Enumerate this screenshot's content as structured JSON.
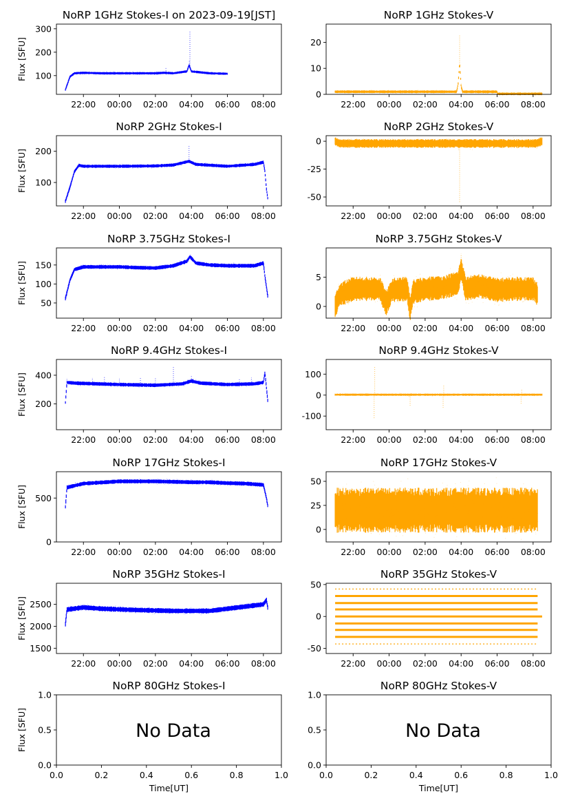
{
  "figure": {
    "xlabel": "Time[UT]"
  },
  "chart_data": [
    {
      "id": "p1i",
      "type": "scatter",
      "title": "NoRP 1GHz Stokes-I on 2023-09-19[JST]",
      "ylabel": "Flux [SFU]",
      "ylim": [
        20,
        320
      ],
      "yticks": [
        100,
        200,
        300
      ],
      "xlim": [
        "20:30",
        "09:00"
      ],
      "xticks": [
        "22:00",
        "00:00",
        "02:00",
        "04:00",
        "06:00",
        "08:00"
      ],
      "color": "#0000ff",
      "start": "21:00",
      "end": "06:00",
      "profile": [
        [
          "21:00",
          40
        ],
        [
          "21:15",
          95
        ],
        [
          "21:30",
          110
        ],
        [
          "22:00",
          112
        ],
        [
          "23:00",
          110
        ],
        [
          "00:00",
          110
        ],
        [
          "01:00",
          110
        ],
        [
          "02:00",
          110
        ],
        [
          "02:30",
          112
        ],
        [
          "03:00",
          110
        ],
        [
          "03:45",
          118
        ],
        [
          "03:52",
          145
        ],
        [
          "04:00",
          118
        ],
        [
          "05:00",
          110
        ],
        [
          "06:00",
          108
        ]
      ],
      "spread": 4,
      "spikes": [
        [
          "02:35",
          135
        ],
        [
          "03:53",
          165
        ],
        [
          "03:55",
          290
        ]
      ]
    },
    {
      "id": "p1v",
      "type": "scatter",
      "title": "NoRP 1GHz Stokes-V",
      "ylabel": "",
      "ylim": [
        0,
        27
      ],
      "yticks": [
        0,
        10,
        20
      ],
      "xlim": [
        "20:30",
        "09:00"
      ],
      "xticks": [
        "22:00",
        "00:00",
        "02:00",
        "04:00",
        "06:00",
        "08:00"
      ],
      "color": "#ffa500",
      "start": "21:00",
      "end": "08:30",
      "profile": [
        [
          "21:00",
          1
        ],
        [
          "03:45",
          1
        ],
        [
          "03:50",
          4
        ],
        [
          "03:55",
          12
        ],
        [
          "04:00",
          3
        ],
        [
          "04:05",
          1
        ],
        [
          "06:00",
          1
        ],
        [
          "06:01",
          0.2
        ],
        [
          "08:30",
          0.2
        ]
      ],
      "spread": 0.4,
      "spikes": [
        [
          "03:55",
          23
        ]
      ]
    },
    {
      "id": "p2i",
      "type": "scatter",
      "title": "NoRP 2GHz Stokes-I",
      "ylabel": "Flux [SFU]",
      "ylim": [
        25,
        250
      ],
      "yticks": [
        100,
        200
      ],
      "xlim": [
        "20:30",
        "09:00"
      ],
      "xticks": [
        "22:00",
        "00:00",
        "02:00",
        "04:00",
        "06:00",
        "08:00"
      ],
      "color": "#0000ff",
      "start": "21:00",
      "end": "08:15",
      "profile": [
        [
          "21:00",
          40
        ],
        [
          "21:15",
          85
        ],
        [
          "21:30",
          135
        ],
        [
          "21:45",
          155
        ],
        [
          "22:00",
          152
        ],
        [
          "00:00",
          152
        ],
        [
          "02:00",
          153
        ],
        [
          "03:00",
          156
        ],
        [
          "03:52",
          168
        ],
        [
          "04:15",
          158
        ],
        [
          "06:00",
          152
        ],
        [
          "07:30",
          158
        ],
        [
          "08:00",
          165
        ],
        [
          "08:05",
          135
        ],
        [
          "08:10",
          80
        ],
        [
          "08:15",
          45
        ]
      ],
      "spread": 4,
      "spikes": [
        [
          "03:52",
          220
        ]
      ]
    },
    {
      "id": "p2v",
      "type": "scatter",
      "title": "NoRP 2GHz Stokes-V",
      "ylabel": "",
      "ylim": [
        -58,
        5
      ],
      "yticks": [
        0,
        -25,
        -50
      ],
      "xlim": [
        "20:30",
        "09:00"
      ],
      "xticks": [
        "22:00",
        "00:00",
        "02:00",
        "04:00",
        "06:00",
        "08:00"
      ],
      "color": "#ffa500",
      "start": "21:00",
      "end": "08:30",
      "profile": [
        [
          "21:00",
          0
        ],
        [
          "21:15",
          -2
        ],
        [
          "08:10",
          -2
        ],
        [
          "08:30",
          0
        ]
      ],
      "spread": 3,
      "spikes": [
        [
          "03:52",
          -8
        ],
        [
          "03:55",
          -55
        ]
      ]
    },
    {
      "id": "p3i",
      "type": "scatter",
      "title": "NoRP 3.75GHz Stokes-I",
      "ylabel": "Flux [SFU]",
      "ylim": [
        10,
        195
      ],
      "yticks": [
        50,
        100,
        150
      ],
      "xlim": [
        "20:30",
        "09:00"
      ],
      "xticks": [
        "22:00",
        "00:00",
        "02:00",
        "04:00",
        "06:00",
        "08:00"
      ],
      "color": "#0000ff",
      "start": "21:00",
      "end": "08:15",
      "profile": [
        [
          "21:00",
          62
        ],
        [
          "21:15",
          110
        ],
        [
          "21:30",
          138
        ],
        [
          "22:00",
          145
        ],
        [
          "00:00",
          145
        ],
        [
          "01:00",
          143
        ],
        [
          "02:00",
          142
        ],
        [
          "03:00",
          148
        ],
        [
          "03:45",
          160
        ],
        [
          "03:55",
          172
        ],
        [
          "04:15",
          155
        ],
        [
          "05:00",
          150
        ],
        [
          "06:00",
          148
        ],
        [
          "07:30",
          148
        ],
        [
          "08:00",
          155
        ],
        [
          "08:05",
          120
        ],
        [
          "08:15",
          65
        ]
      ],
      "spread": 4,
      "spikes": []
    },
    {
      "id": "p3v",
      "type": "scatter",
      "title": "NoRP 3.75GHz Stokes-V",
      "ylabel": "",
      "ylim": [
        -2,
        10
      ],
      "yticks": [
        0,
        5
      ],
      "xlim": [
        "20:30",
        "09:00"
      ],
      "xticks": [
        "22:00",
        "00:00",
        "02:00",
        "04:00",
        "06:00",
        "08:00"
      ],
      "color": "#ffa500",
      "start": "21:00",
      "end": "08:15",
      "profile": [
        [
          "21:00",
          0
        ],
        [
          "21:15",
          2
        ],
        [
          "22:00",
          3
        ],
        [
          "23:30",
          3
        ],
        [
          "23:50",
          0.5
        ],
        [
          "00:10",
          2.8
        ],
        [
          "01:00",
          3
        ],
        [
          "01:10",
          -0.5
        ],
        [
          "01:20",
          2.5
        ],
        [
          "02:00",
          3
        ],
        [
          "03:00",
          3.2
        ],
        [
          "03:50",
          4
        ],
        [
          "04:00",
          6.5
        ],
        [
          "04:15",
          3
        ],
        [
          "05:00",
          3.5
        ],
        [
          "06:00",
          2.8
        ],
        [
          "07:00",
          3
        ],
        [
          "08:00",
          3
        ],
        [
          "08:15",
          2
        ]
      ],
      "spread": 1.6,
      "spikes": [
        [
          "04:00",
          9
        ]
      ]
    },
    {
      "id": "p4i",
      "type": "scatter",
      "title": "NoRP 9.4GHz Stokes-I",
      "ylabel": "Flux [SFU]",
      "ylim": [
        20,
        510
      ],
      "yticks": [
        200,
        400
      ],
      "xlim": [
        "20:30",
        "09:00"
      ],
      "xticks": [
        "22:00",
        "00:00",
        "02:00",
        "04:00",
        "06:00",
        "08:00"
      ],
      "color": "#0000ff",
      "start": "21:00",
      "end": "08:15",
      "profile": [
        [
          "21:00",
          210
        ],
        [
          "21:05",
          350
        ],
        [
          "21:30",
          345
        ],
        [
          "00:00",
          335
        ],
        [
          "02:00",
          330
        ],
        [
          "03:30",
          340
        ],
        [
          "04:00",
          360
        ],
        [
          "04:30",
          345
        ],
        [
          "06:00",
          335
        ],
        [
          "07:30",
          340
        ],
        [
          "08:00",
          350
        ],
        [
          "08:05",
          420
        ],
        [
          "08:15",
          210
        ]
      ],
      "spread": 10,
      "spikes": [
        [
          "21:05",
          380
        ],
        [
          "22:30",
          385
        ],
        [
          "23:10",
          395
        ],
        [
          "00:00",
          380
        ],
        [
          "01:10",
          385
        ],
        [
          "02:00",
          380
        ],
        [
          "03:00",
          460
        ],
        [
          "04:00",
          400
        ],
        [
          "06:40",
          375
        ],
        [
          "07:20",
          385
        ]
      ]
    },
    {
      "id": "p4v",
      "type": "scatter",
      "title": "NoRP 9.4GHz Stokes-V",
      "ylabel": "",
      "ylim": [
        -165,
        170
      ],
      "yticks": [
        -100,
        0,
        100
      ],
      "xlim": [
        "20:30",
        "09:00"
      ],
      "xticks": [
        "22:00",
        "00:00",
        "02:00",
        "04:00",
        "06:00",
        "08:00"
      ],
      "color": "#ffa500",
      "start": "21:00",
      "end": "08:30",
      "profile": [
        [
          "21:00",
          2
        ],
        [
          "08:30",
          2
        ]
      ],
      "spread": 4,
      "spikes": [
        [
          "23:10",
          -110
        ],
        [
          "23:12",
          140
        ],
        [
          "01:10",
          -50
        ],
        [
          "03:00",
          -60
        ],
        [
          "03:02",
          50
        ],
        [
          "07:20",
          -40
        ],
        [
          "07:22",
          30
        ]
      ]
    },
    {
      "id": "p5i",
      "type": "scatter",
      "title": "NoRP 17GHz Stokes-I",
      "ylabel": "Flux [SFU]",
      "ylim": [
        0,
        800
      ],
      "yticks": [
        0,
        500
      ],
      "xlim": [
        "20:30",
        "09:00"
      ],
      "xticks": [
        "22:00",
        "00:00",
        "02:00",
        "04:00",
        "06:00",
        "08:00"
      ],
      "color": "#0000ff",
      "start": "21:00",
      "end": "08:15",
      "profile": [
        [
          "21:00",
          400
        ],
        [
          "21:05",
          620
        ],
        [
          "22:00",
          665
        ],
        [
          "00:00",
          690
        ],
        [
          "02:00",
          690
        ],
        [
          "04:00",
          680
        ],
        [
          "05:00",
          680
        ],
        [
          "06:00",
          670
        ],
        [
          "07:00",
          665
        ],
        [
          "08:00",
          650
        ],
        [
          "08:10",
          500
        ],
        [
          "08:15",
          400
        ]
      ],
      "spread": 18,
      "spikes": []
    },
    {
      "id": "p5v",
      "type": "scatter",
      "title": "NoRP 17GHz Stokes-V",
      "ylabel": "",
      "ylim": [
        -13,
        60
      ],
      "yticks": [
        0,
        25,
        50
      ],
      "xlim": [
        "20:30",
        "09:00"
      ],
      "xticks": [
        "22:00",
        "00:00",
        "02:00",
        "04:00",
        "06:00",
        "08:00"
      ],
      "color": "#ffa500",
      "start": "21:00",
      "end": "08:15",
      "profile": [
        [
          "21:00",
          20
        ],
        [
          "08:15",
          20
        ]
      ],
      "spread": 18,
      "spikes": []
    },
    {
      "id": "p6i",
      "type": "scatter",
      "title": "NoRP 35GHz Stokes-I",
      "ylabel": "Flux [SFU]",
      "ylim": [
        1380,
        2980
      ],
      "yticks": [
        1500,
        2000,
        2500
      ],
      "xlim": [
        "20:30",
        "09:00"
      ],
      "xticks": [
        "22:00",
        "00:00",
        "02:00",
        "04:00",
        "06:00",
        "08:00"
      ],
      "color": "#0000ff",
      "start": "21:00",
      "end": "08:15",
      "profile": [
        [
          "21:00",
          2050
        ],
        [
          "21:05",
          2380
        ],
        [
          "22:00",
          2430
        ],
        [
          "23:00",
          2400
        ],
        [
          "01:00",
          2370
        ],
        [
          "03:00",
          2350
        ],
        [
          "05:00",
          2350
        ],
        [
          "06:00",
          2400
        ],
        [
          "07:00",
          2450
        ],
        [
          "08:00",
          2500
        ],
        [
          "08:10",
          2600
        ],
        [
          "08:15",
          2400
        ]
      ],
      "spread": 45,
      "spikes": []
    },
    {
      "id": "p6v",
      "type": "scatter",
      "title": "NoRP 35GHz Stokes-V",
      "ylabel": "",
      "ylim": [
        -58,
        52
      ],
      "yticks": [
        -50,
        0,
        50
      ],
      "xlim": [
        "20:30",
        "09:00"
      ],
      "xticks": [
        "22:00",
        "00:00",
        "02:00",
        "04:00",
        "06:00",
        "08:00"
      ],
      "color": "#ffa500",
      "start": "21:00",
      "end": "08:30",
      "levels": [
        -43,
        -32,
        -21,
        -11,
        0,
        11,
        21,
        32,
        43
      ],
      "level_end": "08:15"
    },
    {
      "id": "p7i",
      "type": "empty",
      "title": "NoRP 80GHz Stokes-I",
      "ylabel": "Flux [SFU]",
      "xlabel": "Time[UT]",
      "ylim": [
        0,
        1
      ],
      "xlim": [
        0,
        1
      ],
      "yticks": [
        "0.0",
        "0.5",
        "1.0"
      ],
      "xticks": [
        "0.0",
        "0.2",
        "0.4",
        "0.6",
        "0.8",
        "1.0"
      ],
      "annotation": "No Data"
    },
    {
      "id": "p7v",
      "type": "empty",
      "title": "NoRP 80GHz Stokes-V",
      "ylabel": "",
      "xlabel": "Time[UT]",
      "ylim": [
        0,
        1
      ],
      "xlim": [
        0,
        1
      ],
      "yticks": [
        "0.0",
        "0.5",
        "1.0"
      ],
      "xticks": [
        "0.0",
        "0.2",
        "0.4",
        "0.6",
        "0.8",
        "1.0"
      ],
      "annotation": "No Data"
    }
  ]
}
